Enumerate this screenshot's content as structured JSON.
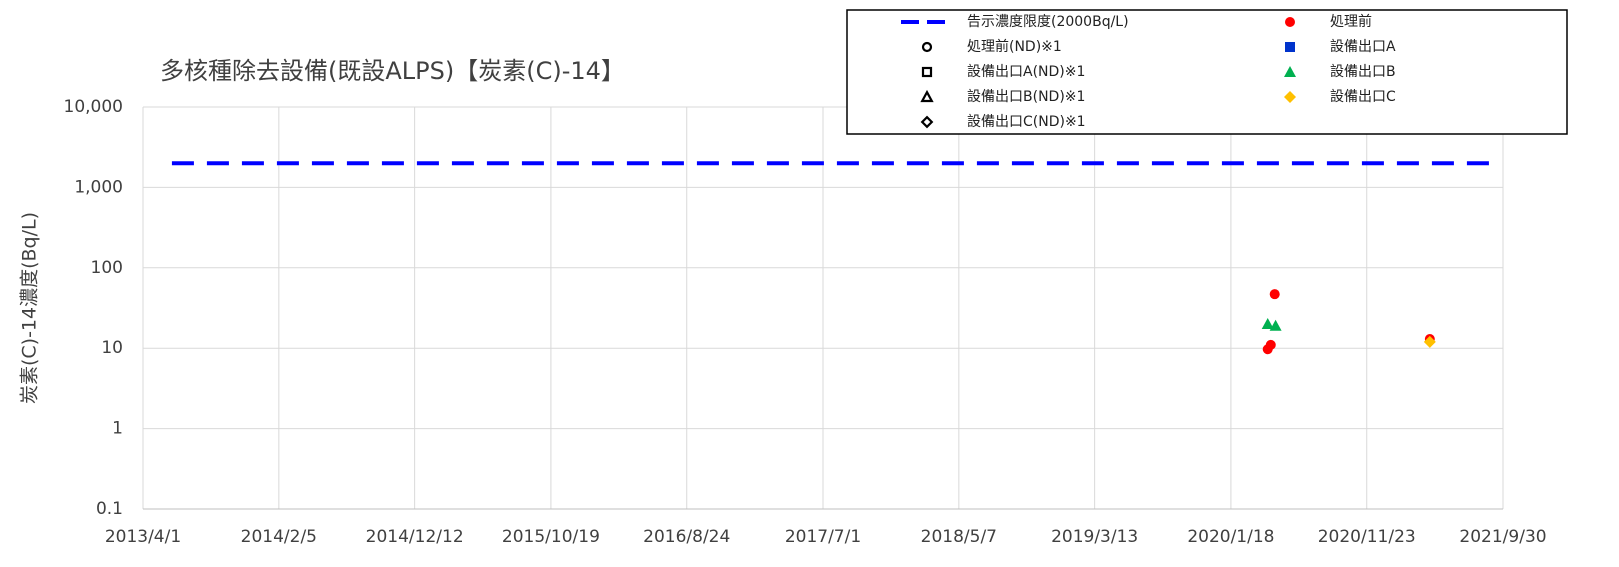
{
  "chart_data": {
    "type": "scatter",
    "title": "多核種除去設備(既設ALPS)【炭素(C)-14】",
    "y_label": "炭素(C)-14濃度(Bq/L)",
    "log_y": true,
    "grid": true,
    "legend": "top-right",
    "xlim": [
      "2013/4/1",
      "2021/9/30"
    ],
    "xticks": [
      "2013/4/1",
      "2014/2/5",
      "2014/12/12",
      "2015/10/19",
      "2016/8/24",
      "2017/7/1",
      "2018/5/7",
      "2019/3/13",
      "2020/1/18",
      "2020/11/23",
      "2021/9/30"
    ],
    "ylim": [
      0.1,
      10000
    ],
    "yticks": [
      0.1,
      1,
      10,
      100,
      {
        "value": 1000,
        "label": "1,000"
      },
      {
        "value": 10000,
        "label": "10,000"
      }
    ],
    "series": [
      {
        "name": "告示濃度限度(2000Bq/L)",
        "color": "#0000ff",
        "marker": "dash",
        "x": [
          "2013/6/6",
          "2021/9/16"
        ],
        "values": [
          2000,
          2000
        ]
      },
      {
        "name": "処理前(ND)※1",
        "color": "#000000",
        "marker": "circle",
        "filled": false,
        "x": [],
        "values": []
      },
      {
        "name": "設備出口A(ND)※1",
        "color": "#000000",
        "marker": "square",
        "filled": false,
        "x": [],
        "values": []
      },
      {
        "name": "設備出口B(ND)※1",
        "color": "#000000",
        "marker": "triangle",
        "filled": false,
        "x": [],
        "values": []
      },
      {
        "name": "設備出口C(ND)※1",
        "color": "#000000",
        "marker": "diamond",
        "filled": false,
        "x": [],
        "values": []
      },
      {
        "name": "処理前",
        "color": "#ff0000",
        "marker": "circle",
        "filled": true,
        "x": [
          "2020/4/11",
          "2020/4/18",
          "2020/4/27",
          "2021/4/16"
        ],
        "values": [
          9.7,
          11,
          47,
          13
        ]
      },
      {
        "name": "設備出口A",
        "color": "#0033cc",
        "marker": "square",
        "filled": true,
        "x": [],
        "values": []
      },
      {
        "name": "設備出口B",
        "color": "#00b050",
        "marker": "triangle",
        "filled": true,
        "x": [
          "2020/4/11",
          "2020/4/29"
        ],
        "values": [
          20,
          19
        ]
      },
      {
        "name": "設備出口C",
        "color": "#ffc000",
        "marker": "diamond",
        "filled": true,
        "x": [
          "2021/4/16"
        ],
        "values": [
          12
        ]
      }
    ]
  }
}
